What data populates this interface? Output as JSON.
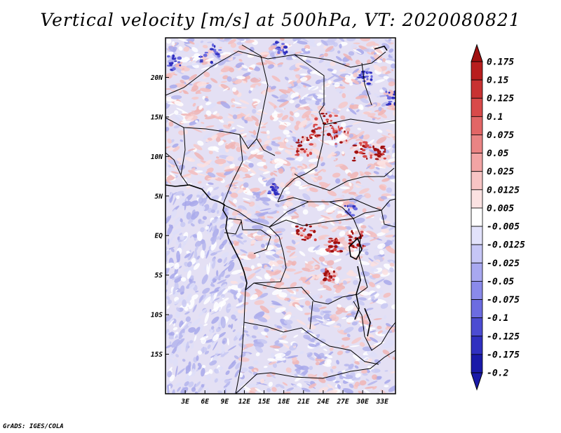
{
  "title": "Vertical velocity [m/s] at 500hPa, VT: 2020080821",
  "credit": "GrADS: IGES/COLA",
  "map": {
    "lon_range": [
      0,
      35
    ],
    "lat_range": [
      -20,
      25
    ],
    "lon_ticks": [
      {
        "value": 3,
        "label": "3E"
      },
      {
        "value": 6,
        "label": "6E"
      },
      {
        "value": 9,
        "label": "9E"
      },
      {
        "value": 12,
        "label": "12E"
      },
      {
        "value": 15,
        "label": "15E"
      },
      {
        "value": 18,
        "label": "18E"
      },
      {
        "value": 21,
        "label": "21E"
      },
      {
        "value": 24,
        "label": "24E"
      },
      {
        "value": 27,
        "label": "27E"
      },
      {
        "value": 30,
        "label": "30E"
      },
      {
        "value": 33,
        "label": "33E"
      }
    ],
    "lat_ticks": [
      {
        "value": 20,
        "label": "20N"
      },
      {
        "value": 15,
        "label": "15N"
      },
      {
        "value": 10,
        "label": "10N"
      },
      {
        "value": 5,
        "label": "5N"
      },
      {
        "value": 0,
        "label": "EQ"
      },
      {
        "value": -5,
        "label": "5S"
      },
      {
        "value": -10,
        "label": "10S"
      },
      {
        "value": -15,
        "label": "15S"
      }
    ]
  },
  "colorbar": {
    "levels": [
      {
        "label": "0.175",
        "color": "#a01010"
      },
      {
        "label": "0.15",
        "color": "#b81e1e"
      },
      {
        "label": "0.125",
        "color": "#c83232"
      },
      {
        "label": "0.1",
        "color": "#d84a4a"
      },
      {
        "label": "0.075",
        "color": "#e26666"
      },
      {
        "label": "0.05",
        "color": "#ea8484"
      },
      {
        "label": "0.025",
        "color": "#f2a4a4"
      },
      {
        "label": "0.0125",
        "color": "#f7c4c4"
      },
      {
        "label": "0.005",
        "color": "#fbe2e2"
      },
      {
        "label": "-0.005",
        "color": "#ffffff"
      },
      {
        "label": "-0.0125",
        "color": "#e2e2fb"
      },
      {
        "label": "-0.025",
        "color": "#c6c6f6"
      },
      {
        "label": "-0.05",
        "color": "#a8a8f0"
      },
      {
        "label": "-0.075",
        "color": "#8a8aea"
      },
      {
        "label": "-0.1",
        "color": "#6c6ce0"
      },
      {
        "label": "-0.125",
        "color": "#4c4cd2"
      },
      {
        "label": "-0.175",
        "color": "#3030c0"
      },
      {
        "label": "-0.2",
        "color": "#1a1aa8"
      }
    ],
    "top_color": "#a01010",
    "bottom_color": "#1a1aa8"
  }
}
